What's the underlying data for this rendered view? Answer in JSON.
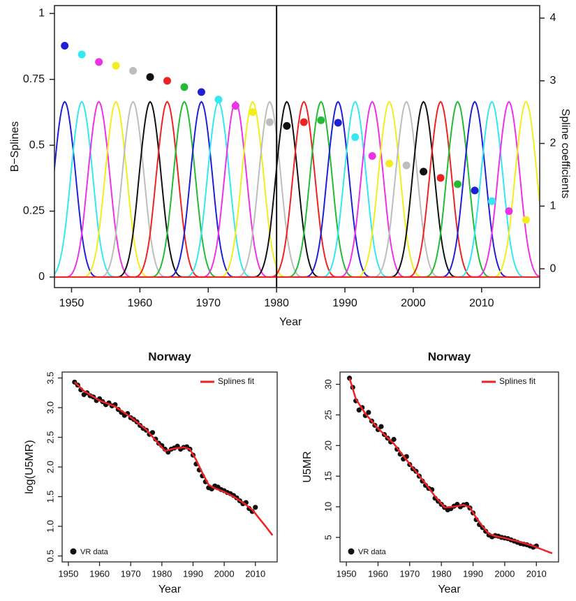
{
  "chart_data": [
    {
      "id": "bspline-panel",
      "type": "line",
      "xlabel": "Year",
      "ylabel": "B−Splines",
      "y2label": "Spline coefficients",
      "xlim": [
        1947.5,
        2018.5
      ],
      "ylim": [
        -0.04,
        1.03
      ],
      "y2lim": [
        -0.3,
        4.2
      ],
      "xticks": [
        1950,
        1960,
        1970,
        1980,
        1990,
        2000,
        2010
      ],
      "yticks": [
        0,
        0.25,
        0.5,
        0.75,
        1
      ],
      "ytick_labels": [
        "0",
        "0.25",
        "0.5",
        "0.75",
        "1"
      ],
      "y2ticks": [
        0,
        1,
        2,
        3,
        4
      ],
      "vline_x": 1980,
      "basis": {
        "peak": 0.665,
        "width": 5.0,
        "centers": [
          1949,
          1951.5,
          1954,
          1956.5,
          1959,
          1961.5,
          1964,
          1966.5,
          1969,
          1971.5,
          1974,
          1976.5,
          1979,
          1981.5,
          1984,
          1986.5,
          1989,
          1991.5,
          1994,
          1996.5,
          1999,
          2001.5,
          2004,
          2006.5,
          2009,
          2011.5,
          2014,
          2016.5
        ],
        "colors": [
          "#1f1fd6",
          "#33e8ef",
          "#ee33e6",
          "#f2ee1e",
          "#bdbdbd",
          "#111111",
          "#ee2222",
          "#22bb33",
          "#1f1fd6",
          "#33e8ef",
          "#ee33e6",
          "#f2ee1e",
          "#bdbdbd",
          "#111111",
          "#ee2222",
          "#22bb33",
          "#1f1fd6",
          "#33e8ef",
          "#ee33e6",
          "#f2ee1e",
          "#bdbdbd",
          "#111111",
          "#ee2222",
          "#22bb33",
          "#1f1fd6",
          "#33e8ef",
          "#ee33e6",
          "#f2ee1e"
        ]
      },
      "coefficients": {
        "x": [
          1949,
          1951.5,
          1954,
          1956.5,
          1959,
          1961.5,
          1964,
          1966.5,
          1969,
          1971.5,
          1974,
          1976.5,
          1979,
          1981.5,
          1984,
          1986.5,
          1989,
          1991.5,
          1994,
          1996.5,
          1999,
          2001.5,
          2004,
          2006.5,
          2009,
          2011.5,
          2014,
          2016.5
        ],
        "y": [
          3.56,
          3.42,
          3.3,
          3.24,
          3.16,
          3.06,
          3.0,
          2.9,
          2.82,
          2.7,
          2.6,
          2.5,
          2.34,
          2.28,
          2.34,
          2.37,
          2.33,
          2.1,
          1.8,
          1.68,
          1.65,
          1.55,
          1.45,
          1.35,
          1.25,
          1.08,
          0.92,
          0.78
        ],
        "colors": [
          "#1f1fd6",
          "#33e8ef",
          "#ee33e6",
          "#f2ee1e",
          "#bdbdbd",
          "#111111",
          "#ee2222",
          "#22bb33",
          "#1f1fd6",
          "#33e8ef",
          "#ee33e6",
          "#f2ee1e",
          "#bdbdbd",
          "#111111",
          "#ee2222",
          "#22bb33",
          "#1f1fd6",
          "#33e8ef",
          "#ee33e6",
          "#f2ee1e",
          "#bdbdbd",
          "#111111",
          "#ee2222",
          "#22bb33",
          "#1f1fd6",
          "#33e8ef",
          "#ee33e6",
          "#f2ee1e"
        ]
      }
    },
    {
      "id": "log-u5mr-panel",
      "type": "scatter",
      "title": "Norway",
      "xlabel": "Year",
      "ylabel": "log(U5MR)",
      "xlim": [
        1948,
        2017
      ],
      "ylim": [
        0.4,
        3.6
      ],
      "xticks": [
        1950,
        1960,
        1970,
        1980,
        1990,
        2000,
        2010
      ],
      "yticks": [
        0.5,
        1.0,
        1.5,
        2.0,
        2.5,
        3.0,
        3.5
      ],
      "ytick_labels": [
        "0.5",
        "1.0",
        "1.5",
        "2.0",
        "2.5",
        "3.0",
        "3.5"
      ],
      "legend_fit": "Splines fit",
      "legend_data": "VR data",
      "fit_color": "#ee2222",
      "data": {
        "x": [
          1952,
          1953,
          1954,
          1955,
          1956,
          1957,
          1958,
          1959,
          1960,
          1961,
          1962,
          1963,
          1964,
          1965,
          1966,
          1967,
          1968,
          1969,
          1970,
          1971,
          1972,
          1973,
          1974,
          1975,
          1976,
          1977,
          1978,
          1979,
          1980,
          1981,
          1982,
          1983,
          1984,
          1985,
          1986,
          1987,
          1988,
          1989,
          1990,
          1991,
          1992,
          1993,
          1994,
          1995,
          1996,
          1997,
          1998,
          1999,
          2000,
          2001,
          2002,
          2003,
          2004,
          2005,
          2006,
          2007,
          2008,
          2009,
          2010
        ],
        "y": [
          3.43,
          3.38,
          3.3,
          3.22,
          3.25,
          3.2,
          3.18,
          3.12,
          3.15,
          3.1,
          3.05,
          3.08,
          3.03,
          3.05,
          2.97,
          2.92,
          2.87,
          2.9,
          2.83,
          2.8,
          2.76,
          2.7,
          2.65,
          2.62,
          2.55,
          2.58,
          2.47,
          2.4,
          2.36,
          2.3,
          2.25,
          2.3,
          2.32,
          2.35,
          2.3,
          2.33,
          2.34,
          2.3,
          2.2,
          2.05,
          1.95,
          1.85,
          1.75,
          1.65,
          1.63,
          1.68,
          1.66,
          1.62,
          1.6,
          1.57,
          1.55,
          1.52,
          1.48,
          1.43,
          1.38,
          1.4,
          1.3,
          1.25,
          1.32
        ]
      },
      "fit": {
        "x": [
          1952,
          1955,
          1960,
          1965,
          1970,
          1975,
          1978,
          1981,
          1984,
          1987,
          1989,
          1991,
          1993,
          1995,
          1997,
          2000,
          2003,
          2006,
          2009,
          2011,
          2013,
          2015.5
        ],
        "y": [
          3.43,
          3.28,
          3.12,
          3.02,
          2.84,
          2.63,
          2.45,
          2.27,
          2.31,
          2.33,
          2.3,
          2.12,
          1.9,
          1.7,
          1.64,
          1.58,
          1.5,
          1.4,
          1.28,
          1.15,
          1.02,
          0.85
        ]
      }
    },
    {
      "id": "u5mr-panel",
      "type": "scatter",
      "title": "Norway",
      "xlabel": "Year",
      "ylabel": "U5MR",
      "xlim": [
        1948,
        2017
      ],
      "ylim": [
        1.0,
        32.0
      ],
      "xticks": [
        1950,
        1960,
        1970,
        1980,
        1990,
        2000,
        2010
      ],
      "yticks": [
        5,
        10,
        15,
        20,
        25,
        30
      ],
      "ytick_labels": [
        "5",
        "10",
        "15",
        "20",
        "25",
        "30"
      ],
      "legend_fit": "Splines fit",
      "legend_data": "VR data",
      "fit_color": "#ee2222",
      "data": {
        "x": [
          1951,
          1952,
          1953,
          1954,
          1955,
          1956,
          1957,
          1958,
          1959,
          1960,
          1961,
          1962,
          1963,
          1964,
          1965,
          1966,
          1967,
          1968,
          1969,
          1970,
          1971,
          1972,
          1973,
          1974,
          1975,
          1976,
          1977,
          1978,
          1979,
          1980,
          1981,
          1982,
          1983,
          1984,
          1985,
          1986,
          1987,
          1988,
          1989,
          1990,
          1991,
          1992,
          1993,
          1994,
          1995,
          1996,
          1997,
          1998,
          1999,
          2000,
          2001,
          2002,
          2003,
          2004,
          2005,
          2006,
          2007,
          2008,
          2009,
          2010
        ],
        "y": [
          31.0,
          29.5,
          27.3,
          25.8,
          26.2,
          24.9,
          25.4,
          24.0,
          23.3,
          22.6,
          23.1,
          21.8,
          21.2,
          20.6,
          21.0,
          19.4,
          18.6,
          17.8,
          18.2,
          16.9,
          16.2,
          15.8,
          15.0,
          14.2,
          13.5,
          13.0,
          12.8,
          11.4,
          10.9,
          10.4,
          9.9,
          9.5,
          9.7,
          10.1,
          10.4,
          10.0,
          10.3,
          10.4,
          9.8,
          9.0,
          7.9,
          7.1,
          6.6,
          6.0,
          5.4,
          5.1,
          5.3,
          5.2,
          5.0,
          4.9,
          4.8,
          4.6,
          4.4,
          4.2,
          4.0,
          3.9,
          3.8,
          3.6,
          3.4,
          3.6
        ]
      },
      "fit": {
        "x": [
          1951,
          1953,
          1956,
          1960,
          1965,
          1970,
          1975,
          1978,
          1981,
          1984,
          1987,
          1989,
          1991,
          1993,
          1995,
          1997,
          2000,
          2003,
          2006,
          2009,
          2012,
          2015
        ],
        "y": [
          31.0,
          27.6,
          25.2,
          22.8,
          20.3,
          17.0,
          13.8,
          11.7,
          9.9,
          10.0,
          10.3,
          9.9,
          8.2,
          6.8,
          5.6,
          5.2,
          4.9,
          4.5,
          4.1,
          3.6,
          3.0,
          2.4
        ]
      }
    }
  ]
}
